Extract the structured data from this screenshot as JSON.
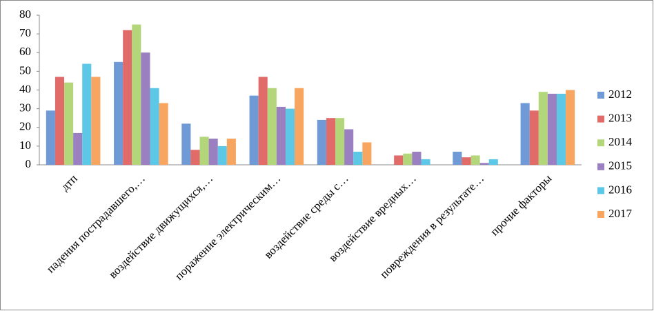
{
  "chart_data": {
    "type": "bar",
    "categories": [
      "дтп",
      "падения пострадавшего,…",
      "воздействие движущихся,…",
      "поражение электрическим…",
      "воздействие среды с…",
      "воздействие вредных…",
      "повреждения в результате…",
      "прочие факторы"
    ],
    "series": [
      {
        "name": "2012",
        "color": "#6f9ad6",
        "values": [
          29,
          55,
          22,
          37,
          24,
          0,
          7,
          33
        ]
      },
      {
        "name": "2013",
        "color": "#e06b68",
        "values": [
          47,
          72,
          8,
          47,
          25,
          5,
          4,
          29
        ]
      },
      {
        "name": "2014",
        "color": "#b3d67a",
        "values": [
          44,
          75,
          15,
          41,
          25,
          6,
          5,
          39
        ]
      },
      {
        "name": "2015",
        "color": "#9a80c0",
        "values": [
          17,
          60,
          14,
          31,
          19,
          7,
          1,
          38
        ]
      },
      {
        "name": "2016",
        "color": "#5cc8e6",
        "values": [
          54,
          41,
          10,
          30,
          7,
          3,
          3,
          38
        ]
      },
      {
        "name": "2017",
        "color": "#f9a562",
        "values": [
          47,
          33,
          14,
          41,
          12,
          0,
          0,
          40
        ]
      }
    ],
    "ylim": [
      0,
      80
    ],
    "yticks": [
      0,
      10,
      20,
      30,
      40,
      50,
      60,
      70,
      80
    ],
    "grid": false,
    "legend": "right"
  }
}
